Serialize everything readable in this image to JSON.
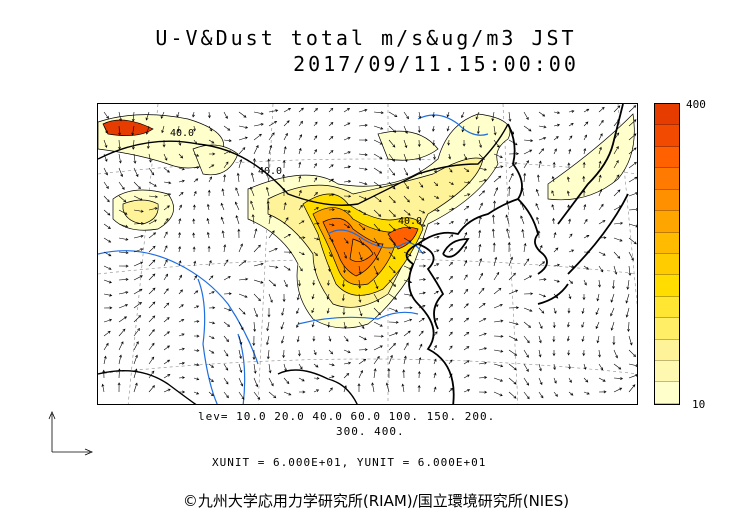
{
  "title_line1": "U-V&Dust total m/s&ug/m3 JST",
  "title_line2": "2017/09/11.15:00:00",
  "colorbar": {
    "max_label": "400",
    "min_label": "10",
    "colors": [
      "#ffffcc",
      "#fff8b0",
      "#fff399",
      "#ffee66",
      "#ffe633",
      "#ffdd00",
      "#ffcc00",
      "#ffbb00",
      "#ffa500",
      "#ff9000",
      "#ff7a00",
      "#ff6000",
      "#f24a00",
      "#e63c00"
    ]
  },
  "contour_labels": [
    "40.0",
    "40.0",
    "40.0"
  ],
  "levels_line1": "lev= 10.0 20.0 40.0 60.0 100. 150. 200.",
  "levels_line2": "300. 400.",
  "units_line": "XUNIT = 6.000E+01, YUNIT = 6.000E+01",
  "credit": "©九州大学応用力学研究所(RIAM)/国立環境研究所(NIES)"
}
